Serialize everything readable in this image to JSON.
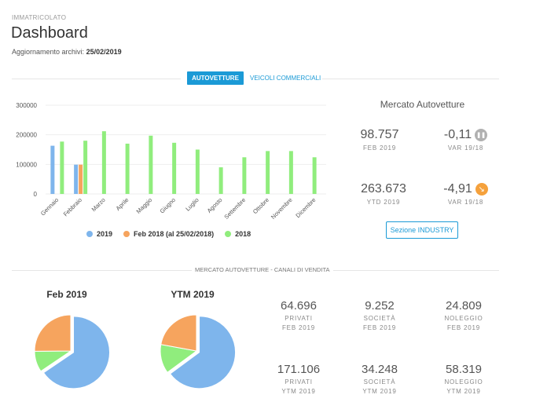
{
  "header": {
    "kicker": "IMMATRICOLATO",
    "title": "Dashboard",
    "updated_label": "Aggiornamento archivi:",
    "updated_date": "25/02/2019"
  },
  "tabs": [
    {
      "label": "AUTOVETTURE",
      "active": true
    },
    {
      "label": "VEICOLI COMMERCIALI",
      "active": false
    }
  ],
  "colors": {
    "accent": "#1b9ad6",
    "s2019": "#7eb5ec",
    "sFeb2018": "#f6a45e",
    "s2018": "#90ed7d",
    "neutral_icon": "#b0b0b0",
    "down_icon": "#f5a13c"
  },
  "chart_data": {
    "type": "bar",
    "categories": [
      "Gennaio",
      "Febbraio",
      "Marzo",
      "Aprile",
      "Maggio",
      "Giugno",
      "Luglio",
      "Agosto",
      "Settembre",
      "Ottobre",
      "Novembre",
      "Dicembre"
    ],
    "series": [
      {
        "name": "2019",
        "values": [
          163000,
          99000,
          null,
          null,
          null,
          null,
          null,
          null,
          null,
          null,
          null,
          null
        ]
      },
      {
        "name": "Feb 2018 (al 25/02/2018)",
        "values": [
          null,
          99000,
          null,
          null,
          null,
          null,
          null,
          null,
          null,
          null,
          null,
          null
        ]
      },
      {
        "name": "2018",
        "values": [
          177000,
          180000,
          212000,
          170000,
          197000,
          173000,
          150000,
          90000,
          124000,
          145000,
          145000,
          124000
        ]
      }
    ],
    "yticks": [
      "0",
      "100000",
      "200000",
      "300000"
    ],
    "ylim": [
      0,
      300000
    ],
    "grid": true,
    "legend": "bottom"
  },
  "market": {
    "title": "Mercato Autovetture",
    "kpis": [
      {
        "value": "98.757",
        "label": "FEB 2019"
      },
      {
        "value": "-0,11",
        "label": "VAR 19/18",
        "icon": "pause-icon"
      },
      {
        "value": "263.673",
        "label": "YTD 2019"
      },
      {
        "value": "-4,91",
        "label": "VAR 19/18",
        "icon": "arrow-down-right-icon"
      }
    ],
    "button": "Sezione INDUSTRY"
  },
  "channels": {
    "title": "MERCATO AUTOVETTURE - CANALI DI VENDITA",
    "pies": [
      {
        "title": "Feb 2019",
        "slices": [
          {
            "name": "PRIVATI",
            "value": 64696
          },
          {
            "name": "SOCIETÀ",
            "value": 9252
          },
          {
            "name": "NOLEGGIO",
            "value": 24809
          }
        ]
      },
      {
        "title": "YTM 2019",
        "slices": [
          {
            "name": "PRIVATI",
            "value": 171106
          },
          {
            "name": "SOCIETÀ",
            "value": 34248
          },
          {
            "name": "NOLEGGIO",
            "value": 58319
          }
        ]
      }
    ],
    "stats": [
      {
        "value": "64.696",
        "label": "PRIVATI",
        "period": "FEB 2019"
      },
      {
        "value": "9.252",
        "label": "SOCIETÀ",
        "period": "FEB 2019"
      },
      {
        "value": "24.809",
        "label": "NOLEGGIO",
        "period": "FEB 2019"
      },
      {
        "value": "171.106",
        "label": "PRIVATI",
        "period": "YTM 2019"
      },
      {
        "value": "34.248",
        "label": "SOCIETÀ",
        "period": "YTM 2019"
      },
      {
        "value": "58.319",
        "label": "NOLEGGIO",
        "period": "YTM 2019"
      }
    ]
  }
}
